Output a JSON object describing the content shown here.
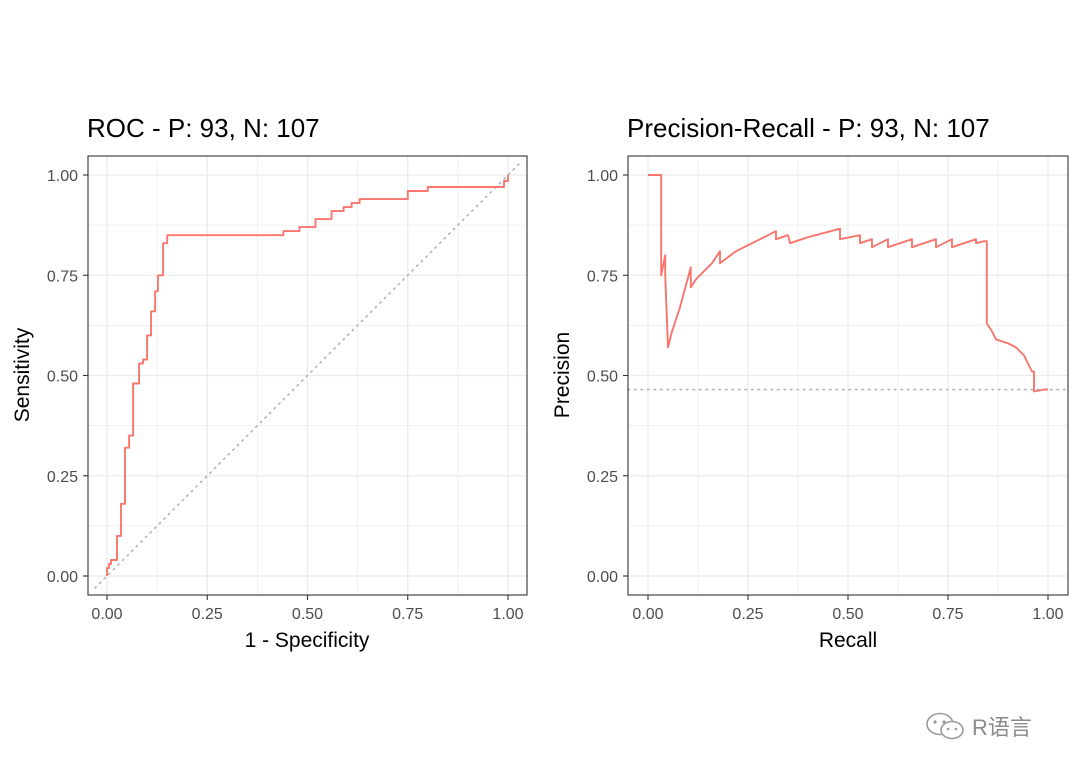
{
  "chart_data": [
    {
      "type": "line",
      "title": "ROC - P: 93, N: 107",
      "xlabel": "1 - Specificity",
      "ylabel": "Sensitivity",
      "xlim": [
        0,
        1
      ],
      "ylim": [
        0,
        1
      ],
      "x_ticks": [
        "0.00",
        "0.25",
        "0.50",
        "0.75",
        "1.00"
      ],
      "y_ticks": [
        "0.00",
        "0.25",
        "0.50",
        "0.75",
        "1.00"
      ],
      "grid": true,
      "line_color": "#F8766D",
      "reference_line": {
        "style": "dotted",
        "color": "#b3b3b3",
        "points": [
          [
            -0.03,
            -0.03
          ],
          [
            1.03,
            1.03
          ]
        ]
      },
      "series": [
        {
          "points": [
            [
              0.0,
              0.0
            ],
            [
              0.0,
              0.02
            ],
            [
              0.005,
              0.02
            ],
            [
              0.005,
              0.03
            ],
            [
              0.01,
              0.03
            ],
            [
              0.01,
              0.04
            ],
            [
              0.025,
              0.04
            ],
            [
              0.025,
              0.1
            ],
            [
              0.035,
              0.1
            ],
            [
              0.035,
              0.18
            ],
            [
              0.045,
              0.18
            ],
            [
              0.045,
              0.32
            ],
            [
              0.055,
              0.32
            ],
            [
              0.055,
              0.35
            ],
            [
              0.065,
              0.35
            ],
            [
              0.065,
              0.48
            ],
            [
              0.08,
              0.48
            ],
            [
              0.08,
              0.53
            ],
            [
              0.09,
              0.53
            ],
            [
              0.09,
              0.54
            ],
            [
              0.1,
              0.54
            ],
            [
              0.1,
              0.6
            ],
            [
              0.11,
              0.6
            ],
            [
              0.11,
              0.66
            ],
            [
              0.12,
              0.66
            ],
            [
              0.12,
              0.71
            ],
            [
              0.127,
              0.71
            ],
            [
              0.127,
              0.75
            ],
            [
              0.14,
              0.75
            ],
            [
              0.14,
              0.83
            ],
            [
              0.15,
              0.83
            ],
            [
              0.15,
              0.85
            ],
            [
              0.44,
              0.85
            ],
            [
              0.44,
              0.86
            ],
            [
              0.48,
              0.86
            ],
            [
              0.48,
              0.87
            ],
            [
              0.52,
              0.87
            ],
            [
              0.52,
              0.89
            ],
            [
              0.56,
              0.89
            ],
            [
              0.56,
              0.91
            ],
            [
              0.59,
              0.91
            ],
            [
              0.59,
              0.92
            ],
            [
              0.61,
              0.92
            ],
            [
              0.61,
              0.93
            ],
            [
              0.63,
              0.93
            ],
            [
              0.63,
              0.94
            ],
            [
              0.75,
              0.94
            ],
            [
              0.75,
              0.96
            ],
            [
              0.8,
              0.96
            ],
            [
              0.8,
              0.97
            ],
            [
              0.99,
              0.97
            ],
            [
              0.99,
              0.985
            ],
            [
              1.0,
              0.985
            ],
            [
              1.0,
              1.0
            ]
          ]
        }
      ]
    },
    {
      "type": "line",
      "title": "Precision-Recall - P: 93, N: 107",
      "xlabel": "Recall",
      "ylabel": "Precision",
      "xlim": [
        0,
        1
      ],
      "ylim": [
        0,
        1
      ],
      "x_ticks": [
        "0.00",
        "0.25",
        "0.50",
        "0.75",
        "1.00"
      ],
      "y_ticks": [
        "0.00",
        "0.25",
        "0.50",
        "0.75",
        "1.00"
      ],
      "grid": true,
      "line_color": "#F8766D",
      "reference_line": {
        "style": "dotted",
        "color": "#b3b3b3",
        "points": [
          [
            -0.05,
            0.465
          ],
          [
            1.05,
            0.465
          ]
        ]
      },
      "series": [
        {
          "points": [
            [
              0.0,
              1.0
            ],
            [
              0.033,
              1.0
            ],
            [
              0.033,
              0.75
            ],
            [
              0.043,
              0.8
            ],
            [
              0.043,
              0.75
            ],
            [
              0.05,
              0.57
            ],
            [
              0.06,
              0.61
            ],
            [
              0.08,
              0.67
            ],
            [
              0.107,
              0.77
            ],
            [
              0.107,
              0.72
            ],
            [
              0.12,
              0.74
            ],
            [
              0.16,
              0.78
            ],
            [
              0.18,
              0.81
            ],
            [
              0.18,
              0.78
            ],
            [
              0.22,
              0.81
            ],
            [
              0.3,
              0.85
            ],
            [
              0.32,
              0.86
            ],
            [
              0.32,
              0.84
            ],
            [
              0.35,
              0.85
            ],
            [
              0.355,
              0.83
            ],
            [
              0.4,
              0.845
            ],
            [
              0.48,
              0.866
            ],
            [
              0.48,
              0.84
            ],
            [
              0.53,
              0.85
            ],
            [
              0.53,
              0.83
            ],
            [
              0.56,
              0.84
            ],
            [
              0.56,
              0.82
            ],
            [
              0.6,
              0.84
            ],
            [
              0.6,
              0.82
            ],
            [
              0.66,
              0.84
            ],
            [
              0.66,
              0.82
            ],
            [
              0.72,
              0.84
            ],
            [
              0.72,
              0.82
            ],
            [
              0.76,
              0.84
            ],
            [
              0.76,
              0.82
            ],
            [
              0.82,
              0.84
            ],
            [
              0.82,
              0.83
            ],
            [
              0.84,
              0.835
            ],
            [
              0.847,
              0.835
            ],
            [
              0.847,
              0.63
            ],
            [
              0.86,
              0.61
            ],
            [
              0.87,
              0.59
            ],
            [
              0.9,
              0.58
            ],
            [
              0.92,
              0.57
            ],
            [
              0.94,
              0.55
            ],
            [
              0.96,
              0.51
            ],
            [
              0.965,
              0.51
            ],
            [
              0.965,
              0.46
            ],
            [
              0.99,
              0.465
            ],
            [
              1.0,
              0.465
            ]
          ]
        }
      ]
    }
  ],
  "watermark": {
    "text": "R语言",
    "icon": "wechat-icon"
  }
}
